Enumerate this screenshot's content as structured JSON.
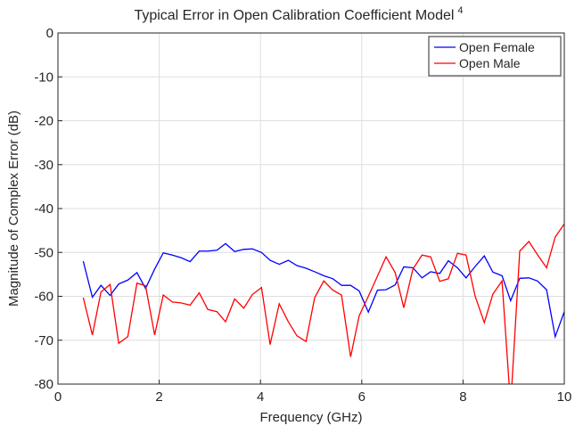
{
  "chart_data": {
    "type": "line",
    "title": "Typical Error in Open Calibration Coefficient Model",
    "title_superscript": "4",
    "xlabel": "Frequency (GHz)",
    "ylabel": "Magnitude of Complex Error (dB)",
    "x": [
      0.5,
      0.68,
      0.85,
      1.03,
      1.2,
      1.38,
      1.56,
      1.73,
      1.91,
      2.08,
      2.26,
      2.43,
      2.61,
      2.79,
      2.96,
      3.14,
      3.31,
      3.49,
      3.67,
      3.84,
      4.02,
      4.19,
      4.37,
      4.55,
      4.72,
      4.9,
      5.07,
      5.25,
      5.43,
      5.6,
      5.78,
      5.95,
      6.13,
      6.31,
      6.48,
      6.66,
      6.83,
      7.01,
      7.19,
      7.36,
      7.54,
      7.71,
      7.89,
      8.06,
      8.24,
      8.42,
      8.59,
      8.77,
      8.94,
      9.12,
      9.3,
      9.47,
      9.65,
      9.82,
      10
    ],
    "series": [
      {
        "name": "Open Female",
        "color": "#0000ff",
        "values": [
          -52,
          -60.2,
          -57.5,
          -59.8,
          -57.2,
          -56.3,
          -54.6,
          -58.2,
          -53.8,
          -50.1,
          -50.6,
          -51.2,
          -52.1,
          -49.7,
          -49.7,
          -49.5,
          -48.0,
          -49.8,
          -49.3,
          -49.2,
          -50.0,
          -51.8,
          -52.7,
          -51.8,
          -53.0,
          -53.6,
          -54.4,
          -55.3,
          -56.0,
          -57.5,
          -57.5,
          -58.8,
          -63.6,
          -58.6,
          -58.5,
          -57.4,
          -53.3,
          -53.5,
          -55.8,
          -54.4,
          -54.8,
          -51.9,
          -53.5,
          -55.8,
          -53.2,
          -50.8,
          -54.5,
          -55.3,
          -61.0,
          -55.9,
          -55.8,
          -56.5,
          -58.5,
          -69.2,
          -63.5
        ]
      },
      {
        "name": "Open Male",
        "color": "#ff0000",
        "values": [
          -60.3,
          -68.8,
          -59.0,
          -57.3,
          -70.7,
          -69.2,
          -57.0,
          -57.6,
          -68.8,
          -59.7,
          -61.3,
          -61.5,
          -62.0,
          -59.2,
          -63.0,
          -63.5,
          -65.8,
          -60.6,
          -62.7,
          -59.6,
          -58.0,
          -71.0,
          -61.7,
          -65.8,
          -69.0,
          -70.3,
          -60.3,
          -56.5,
          -58.6,
          -59.7,
          -73.8,
          -64.4,
          -60.0,
          -55.4,
          -51.0,
          -54.6,
          -62.6,
          -53.8,
          -50.6,
          -51.0,
          -56.6,
          -56.0,
          -50.2,
          -50.6,
          -60.0,
          -66.0,
          -59.5,
          -56.5,
          -85,
          -49.7,
          -47.5,
          -50.5,
          -53.5,
          -46.5,
          -43.5
        ]
      }
    ],
    "xlim": [
      0,
      10
    ],
    "xticks": [
      0,
      2,
      4,
      6,
      8,
      10
    ],
    "ylim": [
      -80,
      0
    ],
    "yticks": [
      -80,
      -70,
      -60,
      -50,
      -40,
      -30,
      -20,
      -10,
      0
    ],
    "grid": true,
    "legend": "top-right"
  }
}
